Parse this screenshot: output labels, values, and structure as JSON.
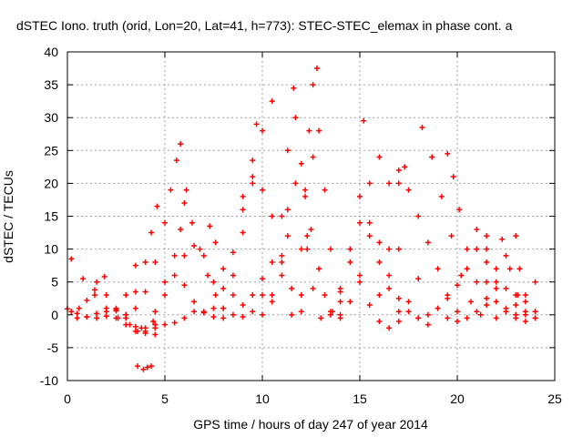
{
  "chart_data": {
    "type": "scatter",
    "title": "dSTEC Iono. truth (orid, Lon=20, Lat=41, h=773): STEC-STEC_elemax in phase cont. a",
    "xlabel": "GPS time / hours of day 247 of year 2014",
    "ylabel": "dSTEC  / TECUs",
    "xlim": [
      0,
      25
    ],
    "ylim": [
      -10,
      40
    ],
    "x_ticks": [
      0,
      5,
      10,
      15,
      20,
      25
    ],
    "y_ticks": [
      -10,
      -5,
      0,
      5,
      10,
      15,
      20,
      25,
      30,
      35,
      40
    ],
    "grid": true,
    "marker": "+",
    "color": "#ff0000",
    "series": [
      {
        "x": [
          0.0,
          0.5,
          1.0,
          1.5,
          2.0,
          2.5,
          3.0,
          3.5
        ],
        "y": [
          0.9,
          0.2,
          -0.3,
          -0.5,
          -0.2,
          0.8,
          3.0,
          7.5
        ]
      },
      {
        "x": [
          0.2,
          0.8,
          1.4,
          2.0,
          2.6,
          3.2,
          3.8,
          4.4
        ],
        "y": [
          8.5,
          5.5,
          3.0,
          1.0,
          -0.5,
          -1.5,
          -2.0,
          -1.0
        ]
      },
      {
        "x": [
          0.2,
          0.6,
          1.0,
          1.4,
          1.9
        ],
        "y": [
          0.5,
          1.0,
          2.2,
          3.8,
          5.8
        ]
      },
      {
        "x": [
          0.5,
          1.0,
          1.5,
          2.0,
          2.5,
          3.0
        ],
        "y": [
          -0.5,
          -0.3,
          0.2,
          0.5,
          0.6,
          0.0
        ]
      },
      {
        "x": [
          1.5,
          2.0,
          2.5,
          3.0,
          3.5,
          4.0,
          4.5
        ],
        "y": [
          5.0,
          3.0,
          1.0,
          -0.5,
          -1.8,
          -2.5,
          -2.0
        ]
      },
      {
        "x": [
          3.6,
          3.9,
          4.1,
          4.3
        ],
        "y": [
          -7.8,
          -8.3,
          -8.0,
          -7.8
        ]
      },
      {
        "x": [
          2.5,
          3.0,
          3.5,
          4.0,
          4.5
        ],
        "y": [
          -0.5,
          -1.5,
          -2.5,
          -2.8,
          -1.5
        ]
      },
      {
        "x": [
          3.6,
          4.0,
          4.5,
          5.0,
          5.5,
          6.0,
          6.5,
          7.0,
          7.5
        ],
        "y": [
          -2.5,
          -2.0,
          0.5,
          3.0,
          6.0,
          9.0,
          10.5,
          9.0,
          5.0
        ]
      },
      {
        "x": [
          3.0,
          3.5,
          4.0,
          4.5,
          5.0,
          5.3,
          5.6,
          5.8
        ],
        "y": [
          0.0,
          1.0,
          3.5,
          8.0,
          14.0,
          19.0,
          23.5,
          26.0
        ]
      },
      {
        "x": [
          3.5,
          4.0,
          4.3,
          4.6
        ],
        "y": [
          3.5,
          8.0,
          12.5,
          16.5
        ]
      },
      {
        "x": [
          4.5,
          5.0,
          5.5,
          6.0,
          6.5,
          7.0
        ],
        "y": [
          -3.0,
          -1.5,
          -1.2,
          -0.5,
          0.5,
          0.3
        ]
      },
      {
        "x": [
          5.0,
          5.5,
          5.8,
          6.0,
          6.1
        ],
        "y": [
          5.0,
          9.0,
          13.0,
          17.0,
          19.0
        ]
      },
      {
        "x": [
          6.0,
          6.5,
          7.0,
          7.5,
          8.0,
          8.5,
          9.0,
          9.5,
          10.0
        ],
        "y": [
          4.5,
          2.0,
          0.5,
          -0.3,
          -0.5,
          0.0,
          1.5,
          3.0,
          5.5
        ]
      },
      {
        "x": [
          6.4,
          6.8,
          7.2,
          7.6,
          8.0
        ],
        "y": [
          14.0,
          10.0,
          6.0,
          3.0,
          1.0
        ]
      },
      {
        "x": [
          7.3,
          7.6,
          8.0,
          8.5,
          9.0
        ],
        "y": [
          13.5,
          11.0,
          7.0,
          3.0,
          -0.3
        ]
      },
      {
        "x": [
          7.5,
          8.0,
          8.5,
          9.0,
          9.5,
          9.7
        ],
        "y": [
          1.0,
          4.0,
          9.5,
          16.0,
          23.5,
          29.0
        ]
      },
      {
        "x": [
          8.0,
          8.5,
          9.0,
          9.5,
          10.0,
          10.5
        ],
        "y": [
          1.0,
          6.0,
          12.5,
          20.0,
          28.0,
          32.5
        ]
      },
      {
        "x": [
          9.0,
          9.5,
          10.0,
          10.5,
          11.0,
          11.5,
          12.0
        ],
        "y": [
          18.0,
          21.0,
          19.0,
          15.0,
          9.0,
          4.0,
          0.5
        ]
      },
      {
        "x": [
          9.5,
          10.0,
          10.5,
          11.0,
          11.3,
          11.6
        ],
        "y": [
          0.5,
          3.0,
          8.0,
          15.0,
          25.0,
          34.5
        ]
      },
      {
        "x": [
          10.0,
          10.5,
          11.0,
          11.3,
          11.7,
          12.0,
          12.3,
          12.6
        ],
        "y": [
          0.0,
          2.0,
          6.0,
          12.0,
          30.0,
          23.0,
          12.0,
          4.0
        ]
      },
      {
        "x": [
          10.5,
          11.0,
          11.3,
          11.7,
          12.2,
          12.5,
          12.9,
          13.2,
          13.6,
          14.0
        ],
        "y": [
          3.0,
          8.0,
          16.0,
          20.0,
          19.0,
          13.0,
          7.0,
          3.0,
          0.5,
          -0.5
        ]
      },
      {
        "x": [
          11.5,
          12.0,
          12.3,
          12.6,
          12.9,
          13.2,
          13.5,
          14.0
        ],
        "y": [
          0.0,
          3.0,
          10.0,
          24.0,
          28.0,
          19.0,
          10.0,
          2.0
        ]
      },
      {
        "x": [
          12.0,
          12.2,
          12.4,
          12.6,
          12.8
        ],
        "y": [
          10.0,
          18.0,
          28.0,
          35.0,
          37.5
        ]
      },
      {
        "x": [
          13.0,
          13.5,
          14.0,
          14.5,
          15.0,
          15.5,
          16.0,
          16.5,
          17.0
        ],
        "y": [
          -0.5,
          0.5,
          3.5,
          8.0,
          14.0,
          20.0,
          24.0,
          20.0,
          10.0
        ]
      },
      {
        "x": [
          13.5,
          14.0,
          14.5,
          15.0,
          15.2
        ],
        "y": [
          0.0,
          4.0,
          10.0,
          18.0,
          29.5
        ]
      },
      {
        "x": [
          14.0,
          14.5,
          15.0,
          15.5,
          16.0,
          16.5,
          17.0
        ],
        "y": [
          0.0,
          2.0,
          6.0,
          12.0,
          8.0,
          4.0,
          0.5
        ]
      },
      {
        "x": [
          15.0,
          15.5,
          16.0,
          16.5,
          17.0,
          17.5,
          18.0
        ],
        "y": [
          5.0,
          1.5,
          -1.0,
          -2.0,
          -1.0,
          2.0,
          5.5
        ]
      },
      {
        "x": [
          15.5,
          16.0,
          16.5,
          17.0,
          17.5,
          18.0,
          18.5
        ],
        "y": [
          14.0,
          11.0,
          6.0,
          2.5,
          0.5,
          -0.5,
          -1.5
        ]
      },
      {
        "x": [
          16.0,
          16.5,
          17.0,
          17.3
        ],
        "y": [
          3.0,
          10.0,
          20.0,
          22.5
        ]
      },
      {
        "x": [
          17.0,
          17.5,
          18.0,
          18.5,
          19.0,
          19.5,
          20.0
        ],
        "y": [
          22.0,
          19.0,
          15.0,
          11.0,
          7.0,
          3.0,
          0.5
        ]
      },
      {
        "x": [
          18.2,
          18.7,
          19.2,
          19.7,
          20.2,
          20.7,
          21.2
        ],
        "y": [
          28.5,
          24.0,
          18.0,
          12.0,
          6.0,
          2.0,
          0.0
        ]
      },
      {
        "x": [
          19.5,
          19.8,
          20.1,
          20.5,
          21.0,
          21.5,
          22.0
        ],
        "y": [
          24.5,
          21.0,
          16.0,
          10.0,
          5.0,
          1.5,
          -0.5
        ]
      },
      {
        "x": [
          18.0,
          18.5,
          19.0,
          19.5,
          20.0,
          20.5,
          21.0,
          21.5
        ],
        "y": [
          -0.5,
          0.0,
          1.0,
          2.5,
          4.5,
          7.0,
          10.0,
          12.0
        ]
      },
      {
        "x": [
          20.5,
          21.0,
          21.5,
          22.0,
          22.5,
          23.0,
          23.5,
          24.0
        ],
        "y": [
          7.0,
          10.0,
          5.0,
          2.0,
          0.5,
          0.0,
          2.0,
          5.0
        ]
      },
      {
        "x": [
          21.0,
          21.5,
          22.0,
          22.5,
          23.0,
          23.5,
          24.0
        ],
        "y": [
          13.0,
          8.0,
          4.0,
          1.0,
          -0.5,
          -1.0,
          -0.5
        ]
      },
      {
        "x": [
          21.5,
          22.0,
          22.5,
          23.0,
          23.5,
          24.0
        ],
        "y": [
          10.0,
          7.0,
          4.0,
          1.5,
          0.0,
          0.5
        ]
      },
      {
        "x": [
          22.3,
          22.7,
          23.1,
          23.5,
          24.0
        ],
        "y": [
          11.5,
          7.0,
          3.0,
          0.5,
          -0.5
        ]
      },
      {
        "x": [
          22.5,
          23.0,
          23.2,
          23.5,
          24.0
        ],
        "y": [
          0.5,
          3.0,
          7.0,
          3.0,
          0.5
        ]
      },
      {
        "x": [
          19.5,
          20.0,
          20.5,
          21.0,
          21.5,
          22.0,
          22.5,
          23.0
        ],
        "y": [
          -0.5,
          -1.0,
          -0.5,
          0.5,
          2.5,
          5.0,
          9.0,
          12.0
        ]
      }
    ]
  }
}
